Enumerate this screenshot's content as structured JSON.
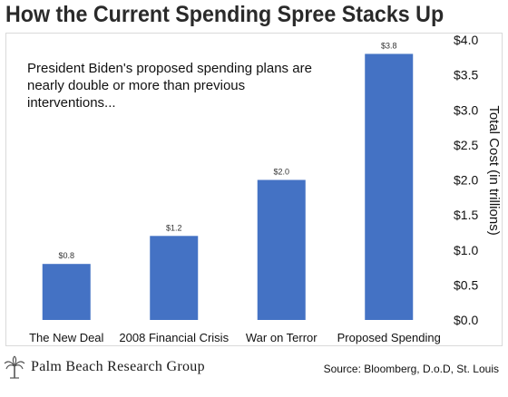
{
  "title": "How the Current Spending Spree Stacks Up",
  "annotation": "President Biden's proposed spending plans are nearly double or more than previous interventions...",
  "footer": {
    "brand": "Palm Beach Research Group",
    "source": "Source: Bloomberg, D.o.D, St. Louis"
  },
  "colors": {
    "bar": "#4472c4",
    "text": "#111111",
    "title": "#2a2a2a"
  },
  "chart_data": {
    "type": "bar",
    "categories": [
      "The New Deal",
      "2008 Financial Crisis",
      "War on Terror",
      "Proposed Spending"
    ],
    "values": [
      0.8,
      1.2,
      2.0,
      3.8
    ],
    "data_labels": [
      "$0.8",
      "$1.2",
      "$2.0",
      "$3.8"
    ],
    "ylabel": "Total Cost (in trillions)",
    "ylim": [
      0,
      4
    ],
    "yticks": [
      "$0.0",
      "$0.5",
      "$1.0",
      "$1.5",
      "$2.0",
      "$2.5",
      "$3.0",
      "$3.5",
      "$4.0"
    ],
    "ytick_values": [
      0,
      0.5,
      1.0,
      1.5,
      2.0,
      2.5,
      3.0,
      3.5,
      4.0
    ],
    "y_axis_position": "right",
    "grid": false,
    "legend": "none"
  }
}
